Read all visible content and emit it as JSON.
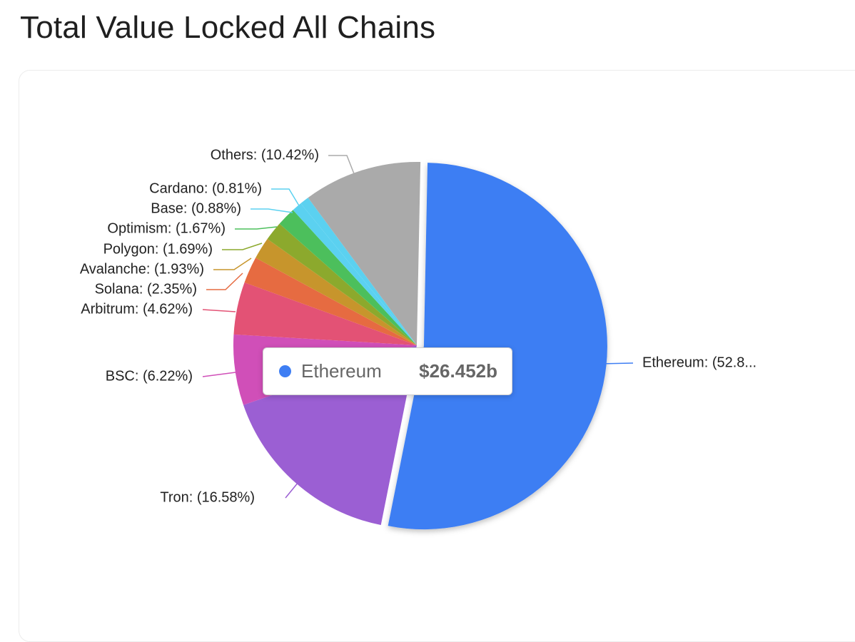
{
  "title": "Total Value Locked All Chains",
  "chart_data": {
    "type": "pie",
    "title": "Total Value Locked All Chains",
    "slices": [
      {
        "name": "Ethereum",
        "label": "Ethereum: (52.8...",
        "percent": 52.8,
        "color": "#3e7ef3"
      },
      {
        "name": "Tron",
        "label": "Tron: (16.58%)",
        "percent": 16.58,
        "color": "#9b5fd3"
      },
      {
        "name": "BSC",
        "label": "BSC: (6.22%)",
        "percent": 6.22,
        "color": "#d04fb8"
      },
      {
        "name": "Arbitrum",
        "label": "Arbitrum: (4.62%)",
        "percent": 4.62,
        "color": "#e35275"
      },
      {
        "name": "Solana",
        "label": "Solana: (2.35%)",
        "percent": 2.35,
        "color": "#e66b41"
      },
      {
        "name": "Avalanche",
        "label": "Avalanche: (1.93%)",
        "percent": 1.93,
        "color": "#c7952c"
      },
      {
        "name": "Polygon",
        "label": "Polygon: (1.69%)",
        "percent": 1.69,
        "color": "#8ca92d"
      },
      {
        "name": "Optimism",
        "label": "Optimism: (1.67%)",
        "percent": 1.67,
        "color": "#4cbf5c"
      },
      {
        "name": "Base",
        "label": "Base: (0.88%)",
        "percent": 0.88,
        "color": "#5bd1f0"
      },
      {
        "name": "Cardano",
        "label": "Cardano: (0.81%)",
        "percent": 0.81,
        "color": "#5bd1f0"
      },
      {
        "name": "Others",
        "label": "Others: (10.42%)",
        "percent": 10.42,
        "color": "#aaaaaa"
      }
    ]
  },
  "tooltip": {
    "name": "Ethereum",
    "value": "$26.452b",
    "color": "#3e7ef3"
  }
}
